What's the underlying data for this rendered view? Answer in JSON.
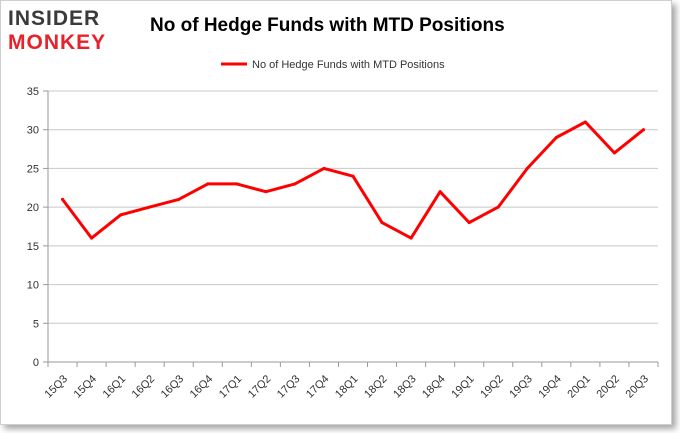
{
  "brand": {
    "logo_line1": "INSIDER",
    "logo_line2": "MONKEY",
    "accent": "#e8212b"
  },
  "chart_data": {
    "type": "line",
    "title": "No of Hedge Funds with MTD Positions",
    "xlabel": "",
    "ylabel": "",
    "categories": [
      "15Q3",
      "15Q4",
      "16Q1",
      "16Q2",
      "16Q3",
      "16Q4",
      "17Q1",
      "17Q2",
      "17Q3",
      "17Q4",
      "18Q1",
      "18Q2",
      "18Q3",
      "18Q4",
      "19Q1",
      "19Q2",
      "19Q3",
      "19Q4",
      "20Q1",
      "20Q2",
      "20Q3"
    ],
    "series": [
      {
        "name": "No of Hedge Funds with MTD Positions",
        "color": "#ff0000",
        "values": [
          21,
          16,
          19,
          20,
          21,
          23,
          23,
          22,
          23,
          25,
          24,
          18,
          16,
          22,
          18,
          20,
          25,
          29,
          31,
          27,
          30
        ]
      }
    ],
    "ylim": [
      0,
      35
    ],
    "yticks": [
      0,
      5,
      10,
      15,
      20,
      25,
      30,
      35
    ],
    "grid": true,
    "legend": "top-center"
  }
}
